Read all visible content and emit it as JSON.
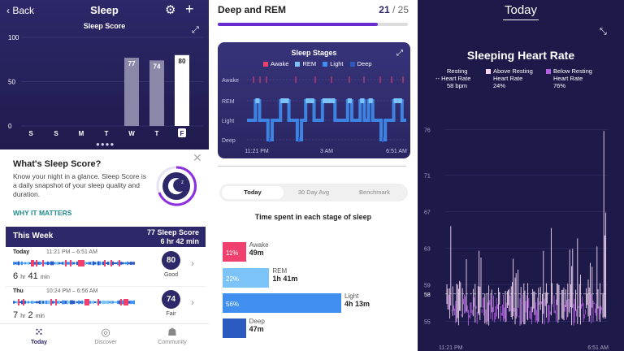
{
  "sleep_score_screen": {
    "back_label": "Back",
    "title": "Sleep",
    "subtitle": "Sleep Score",
    "y_ticks": [
      "100",
      "50",
      "0"
    ],
    "days": [
      "S",
      "S",
      "M",
      "T",
      "W",
      "T",
      "F"
    ],
    "scores": [
      null,
      null,
      null,
      null,
      77,
      74,
      80
    ],
    "score_labels": [
      "",
      "",
      "",
      "",
      "77",
      "74",
      "80"
    ],
    "card": {
      "title": "What's Sleep Score?",
      "body": "Know your night in a glance. Sleep Score is a daily snapshot of your sleep quality and duration.",
      "link": "WHY IT MATTERS"
    },
    "week": {
      "label": "This Week",
      "score_line": "77 Sleep Score",
      "duration_line": "6 hr 42 min"
    },
    "rows": [
      {
        "day": "Today",
        "time": "11:21 PM – 6:51 AM",
        "hours": "6",
        "hr": "hr",
        "minutes": "41",
        "min": "min",
        "score": "80",
        "label": "Good"
      },
      {
        "day": "Thu",
        "time": "10:24 PM – 6:56 AM",
        "hours": "7",
        "hr": "hr",
        "minutes": "2",
        "min": "min",
        "score": "74",
        "label": "Fair"
      }
    ],
    "tabs": [
      {
        "label": "Today",
        "icon": "dots-grid-icon"
      },
      {
        "label": "Discover",
        "icon": "compass-icon"
      },
      {
        "label": "Community",
        "icon": "people-icon"
      }
    ],
    "colors": {
      "bg": "#2c2869",
      "bar": "#8a88a8",
      "bar_today": "#ffffff"
    }
  },
  "stages_screen": {
    "title": "Deep and REM",
    "progress_current": "21",
    "progress_sep": " / ",
    "progress_total": "25",
    "progress_fraction": 0.84,
    "chart_title": "Sleep Stages",
    "legend": [
      {
        "name": "Awake",
        "color": "#f0406e"
      },
      {
        "name": "REM",
        "color": "#7cc4f7"
      },
      {
        "name": "Light",
        "color": "#3f8ef0"
      },
      {
        "name": "Deep",
        "color": "#2b5bbf"
      }
    ],
    "stage_axis": [
      "Awake",
      "REM",
      "Light",
      "Deep"
    ],
    "time_ticks": [
      "11:21 PM",
      "3 AM",
      "6:51 AM"
    ],
    "segments": [
      "Today",
      "30 Day Avg",
      "Benchmark"
    ],
    "section_title": "Time spent in each stage of sleep",
    "breakdown": [
      {
        "name": "Awake",
        "pct": "11%",
        "value": "49m",
        "fraction": 0.11,
        "color": "#f0406e"
      },
      {
        "name": "REM",
        "pct": "22%",
        "value": "1h 41m",
        "fraction": 0.22,
        "color": "#7cc4f7"
      },
      {
        "name": "Light",
        "pct": "56%",
        "value": "4h 13m",
        "fraction": 0.56,
        "color": "#3f8ef0"
      },
      {
        "name": "Deep",
        "pct": "",
        "value": "47m",
        "fraction": 0.11,
        "color": "#2b5bbf"
      }
    ]
  },
  "heart_screen": {
    "tab_title": "Today",
    "title": "Sleeping Heart Rate",
    "legend": [
      {
        "line1": "Resting",
        "line2": "Heart Rate",
        "line3": "58 bpm",
        "marker": "--"
      },
      {
        "line1": "Above Resting",
        "line2": "Heart Rate",
        "line3": "24%",
        "color": "#f3d7f3"
      },
      {
        "line1": "Below Resting",
        "line2": "Heart Rate",
        "line3": "76%",
        "color": "#b25fe0"
      }
    ],
    "y_ticks": [
      "76",
      "71",
      "67",
      "63",
      "59",
      "58",
      "55"
    ],
    "x_ticks": [
      "11:21 PM",
      "6:51 AM"
    ],
    "resting": 58
  }
}
